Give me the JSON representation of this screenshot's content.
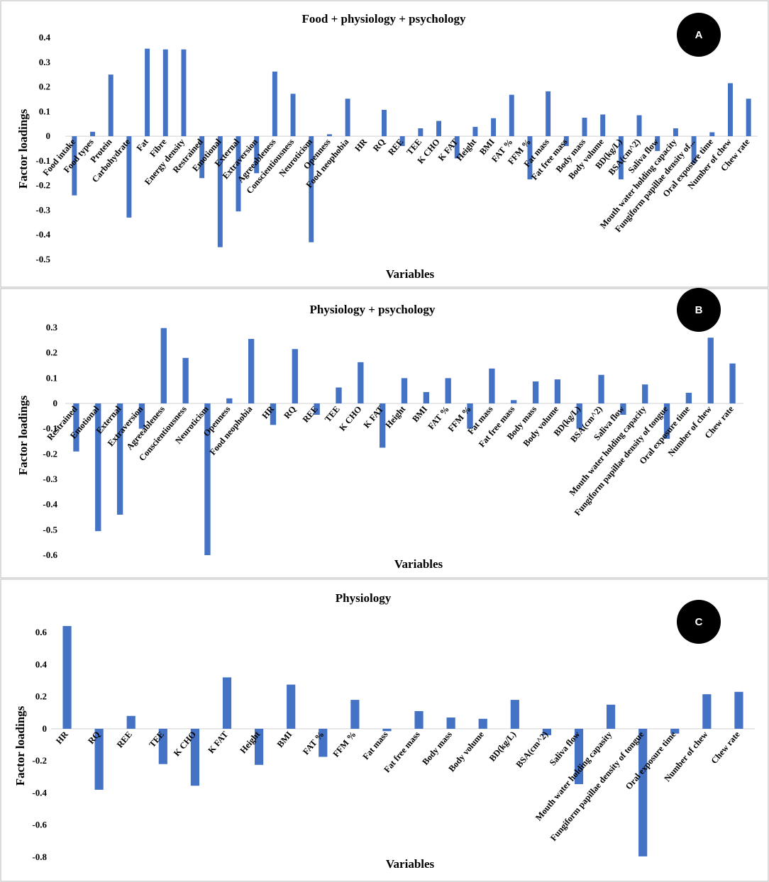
{
  "chart_data": [
    {
      "type": "bar",
      "panel_label": "A",
      "title": "Food + physiology + psychology",
      "xlabel": "Variables",
      "ylabel": "Factor loadings",
      "ylim": [
        -0.5,
        0.4
      ],
      "yticks": [
        0.4,
        0.3,
        0.2,
        0.1,
        0,
        -0.1,
        -0.2,
        -0.3,
        -0.4,
        -0.5
      ],
      "ytick_labels": [
        "0.4",
        "0.3",
        "0.2",
        "0.1",
        "0",
        "-0.1",
        "-0.2",
        "-0.3",
        "-0.4",
        "-0.5"
      ],
      "categories": [
        "Food intake",
        "Food types",
        "Protein",
        "Carbohydrate",
        "Fat",
        "Fibre",
        "Energy density",
        "Restrained",
        "Emotional",
        "External",
        "Extraversion",
        "Agreeableness",
        "Conscientiousness",
        "Neuroticism",
        "Openness",
        "Food neophobia",
        "HR",
        "RQ",
        "REE",
        "TEE",
        "K CHO",
        "K FAT",
        "Height",
        "BMI",
        "FAT %",
        "FFM %",
        "Fat mass",
        "Fat free mass",
        "Body mass",
        "Body volume",
        "BD(kg/L)",
        "BSA(cm^2)",
        "Saliva flow",
        "Mouth water holding capacity",
        "Fungiform papillae density of...",
        "Oral exposure time",
        "Number of chew",
        "Chew rate"
      ],
      "values": [
        -0.24,
        0.018,
        0.25,
        -0.33,
        0.355,
        0.352,
        0.352,
        -0.17,
        -0.45,
        -0.305,
        -0.15,
        0.262,
        0.172,
        -0.43,
        0.008,
        0.152,
        0,
        0.107,
        -0.04,
        0.032,
        0.062,
        -0.09,
        0.038,
        0.073,
        0.168,
        -0.175,
        0.182,
        -0.04,
        0.075,
        0.088,
        -0.175,
        0.085,
        -0.06,
        0.032,
        -0.11,
        0.016,
        0.215,
        0.152
      ]
    },
    {
      "type": "bar",
      "panel_label": "B",
      "title": "Physiology + psychology",
      "xlabel": "Variables",
      "ylabel": "Factor loadings",
      "ylim": [
        -0.6,
        0.3
      ],
      "yticks": [
        0.3,
        0.2,
        0.1,
        0,
        -0.1,
        -0.2,
        -0.3,
        -0.4,
        -0.5,
        -0.6
      ],
      "ytick_labels": [
        "0.3",
        "0.2",
        "0.1",
        "0",
        "-0.1",
        "-0.2",
        "-0.3",
        "-0.4",
        "-0.5",
        "-0.6"
      ],
      "categories": [
        "Restrained",
        "Emotional",
        "External",
        "Extraversion",
        "Agreeableness",
        "Conscientiousness",
        "Neuroticism",
        "Openness",
        "Food neophobia",
        "HR",
        "RQ",
        "REE",
        "TEE",
        "K CHO",
        "K FAT",
        "Height",
        "BMI",
        "FAT %",
        "FFM %",
        "Fat mass",
        "Fat free mass",
        "Body mass",
        "Body volume",
        "BD(kg/L)",
        "BSA(cm^2)",
        "Saliva flow",
        "Mouth water holding capacity",
        "Fungiform papillae density of tongue",
        "Oral exposure time",
        "Number of chew",
        "Chew rate"
      ],
      "values": [
        -0.19,
        -0.505,
        -0.44,
        -0.1,
        0.298,
        0.18,
        -0.6,
        0.02,
        0.255,
        -0.085,
        0.215,
        -0.045,
        0.063,
        0.163,
        -0.175,
        0.1,
        0.045,
        0.1,
        -0.1,
        0.138,
        0.013,
        0.087,
        0.095,
        -0.1,
        0.113,
        -0.045,
        0.075,
        -0.14,
        0.042,
        0.26,
        0.158
      ]
    },
    {
      "type": "bar",
      "panel_label": "C",
      "title": "Physiology",
      "xlabel": "Variables",
      "ylabel": "Factor loadings",
      "ylim": [
        -0.8,
        0.6
      ],
      "yticks": [
        0.6,
        0.4,
        0.2,
        0,
        -0.2,
        -0.4,
        -0.6,
        -0.8
      ],
      "ytick_labels": [
        "0.6",
        "0.4",
        "0.2",
        "0",
        "-0.2",
        "-0.4",
        "-0.6",
        "-0.8"
      ],
      "categories": [
        "HR",
        "RQ",
        "REE",
        "TEE",
        "K CHO",
        "K FAT",
        "Height",
        "BMI",
        "FAT %",
        "FFM %",
        "Fat mass",
        "Fat free mass",
        "Body mass",
        "Body volume",
        "BD(kg/L)",
        "BSA(cm^2)",
        "Saliva flow",
        "Mouth water holding capasity",
        "Fungiform papillae density of tongue",
        "Oral exposure time",
        "Number of chew",
        "Chew rate"
      ],
      "values": [
        0.64,
        -0.38,
        0.08,
        -0.22,
        -0.355,
        0.32,
        -0.225,
        0.275,
        -0.175,
        0.18,
        -0.015,
        0.11,
        0.07,
        0.062,
        0.18,
        -0.04,
        -0.345,
        0.15,
        -0.795,
        -0.03,
        0.215,
        0.23
      ]
    }
  ]
}
